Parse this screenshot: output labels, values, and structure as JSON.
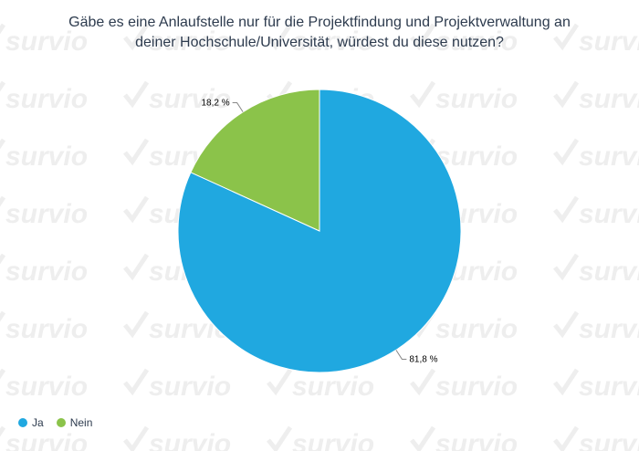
{
  "watermark": {
    "text": "survio",
    "color": "#eeeeee"
  },
  "chart_data": {
    "type": "pie",
    "title_lines": [
      "Gäbe es eine Anlaufstelle nur für die Projektfindung und Projektverwaltung an",
      "deiner Hochschule/Universität, würdest du diese nutzen?"
    ],
    "slices": [
      {
        "name": "Ja",
        "value": 81.8,
        "label": "81,8 %",
        "color": "#20a8e0"
      },
      {
        "name": "Nein",
        "value": 18.2,
        "label": "18,2 %",
        "color": "#8bc34a"
      }
    ],
    "legend_position": "bottom-left"
  }
}
